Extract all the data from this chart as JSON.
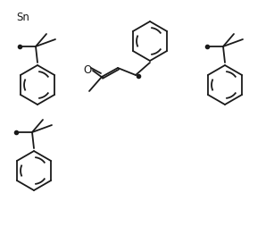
{
  "background_color": "#ffffff",
  "line_color": "#1a1a1a",
  "line_width": 1.3,
  "dot_size": 3,
  "text_sn": "Sn",
  "text_o": "O",
  "figsize": [
    3.07,
    2.63
  ],
  "dpi": 100
}
